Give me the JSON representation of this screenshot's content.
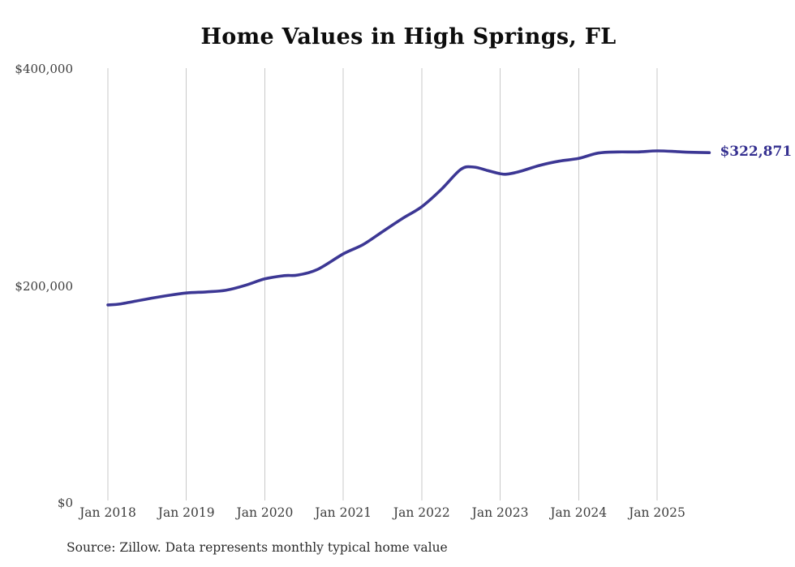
{
  "title": "Home Values in High Springs, FL",
  "source_note": "Source: Zillow. Data represents monthly typical home value",
  "end_label": "$322,871",
  "colors": {
    "line": "#3c3794",
    "grid": "#c9c9c9",
    "axis_text": "#3d3d3d",
    "title_text": "#0d0d0d",
    "end_label_text": "#353090"
  },
  "chart_data": {
    "type": "line",
    "title": "Home Values in High Springs, FL",
    "x_tick_labels": [
      "Jan 2018",
      "Jan 2019",
      "Jan 2020",
      "Jan 2021",
      "Jan 2022",
      "Jan 2023",
      "Jan 2024",
      "Jan 2025"
    ],
    "x_tick_years": [
      2018,
      2019,
      2020,
      2021,
      2022,
      2023,
      2024,
      2025
    ],
    "y_ticks": [
      {
        "label": "$0",
        "value": 0
      },
      {
        "label": "$200,000",
        "value": 200000
      },
      {
        "label": "$400,000",
        "value": 400000
      }
    ],
    "ylim": [
      0,
      400000
    ],
    "grid": "vertical-only",
    "legend": "none",
    "final_value": 322871,
    "final_value_label": "$322,871",
    "points": [
      [
        "2018-01",
        182500
      ],
      [
        "2018-03",
        183500
      ],
      [
        "2018-07",
        188000
      ],
      [
        "2018-10",
        191000
      ],
      [
        "2019-01",
        193500
      ],
      [
        "2019-04",
        194500
      ],
      [
        "2019-07",
        196000
      ],
      [
        "2019-10",
        200500
      ],
      [
        "2020-01",
        206500
      ],
      [
        "2020-04",
        209500
      ],
      [
        "2020-06",
        210000
      ],
      [
        "2020-09",
        215000
      ],
      [
        "2021-01",
        229500
      ],
      [
        "2021-04",
        238000
      ],
      [
        "2021-07",
        250000
      ],
      [
        "2021-10",
        262000
      ],
      [
        "2022-01",
        273000
      ],
      [
        "2022-04",
        289000
      ],
      [
        "2022-07",
        307500
      ],
      [
        "2022-09",
        309500
      ],
      [
        "2022-11",
        306500
      ],
      [
        "2023-01",
        303500
      ],
      [
        "2023-02",
        303000
      ],
      [
        "2023-04",
        305500
      ],
      [
        "2023-07",
        311000
      ],
      [
        "2023-10",
        315000
      ],
      [
        "2024-01",
        317500
      ],
      [
        "2024-04",
        322500
      ],
      [
        "2024-07",
        323500
      ],
      [
        "2024-10",
        323500
      ],
      [
        "2025-01",
        324500
      ],
      [
        "2025-04",
        323800
      ],
      [
        "2025-06",
        323200
      ],
      [
        "2025-09",
        322871
      ]
    ]
  }
}
